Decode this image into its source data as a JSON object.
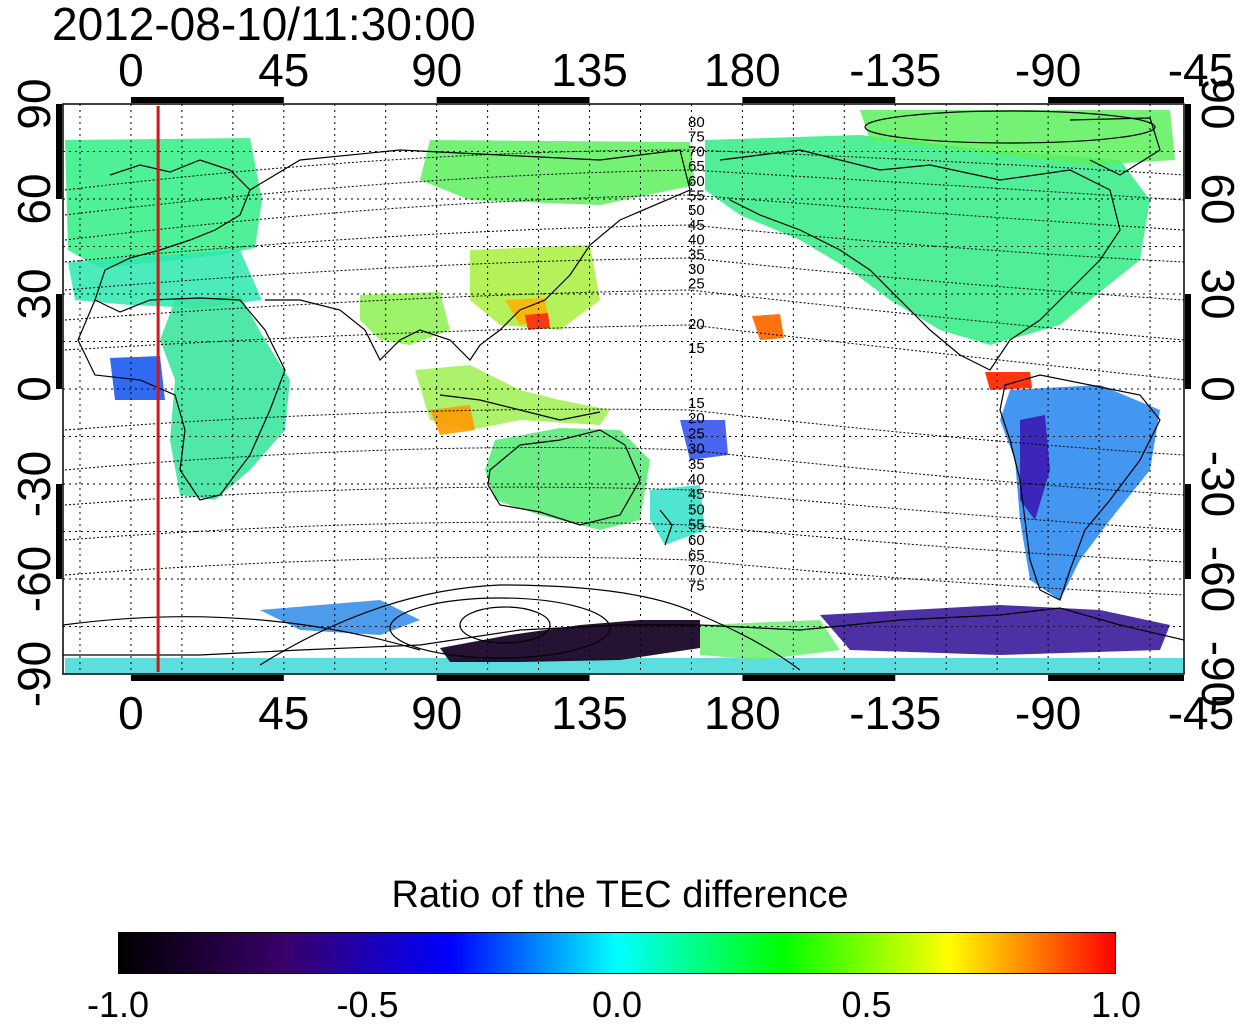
{
  "timestamp": "2012-08-10/11:30:00",
  "map": {
    "lon_top_labels": [
      "0",
      "45",
      "90",
      "135",
      "180",
      "-135",
      "-90",
      "-45"
    ],
    "lon_bottom_labels": [
      "0",
      "45",
      "90",
      "135",
      "180",
      "-135",
      "-90",
      "-45"
    ],
    "lat_left_labels": [
      "90",
      "60",
      "30",
      "0",
      "-30",
      "-60",
      "-90"
    ],
    "lat_right_labels": [
      "90",
      "60",
      "30",
      "0",
      "-30",
      "-60",
      "-90"
    ],
    "north_contour_labels": [
      "80",
      "75",
      "70",
      "65",
      "60",
      "55",
      "50",
      "45",
      "40",
      "35",
      "30",
      "25",
      "20",
      "15"
    ],
    "south_contour_labels": [
      "15",
      "20",
      "25",
      "30",
      "35",
      "40",
      "45",
      "50",
      "55",
      "60",
      "65",
      "70",
      "75"
    ],
    "marker_longitude": 8,
    "projection": "equirectangular",
    "lon_range": [
      -20,
      310
    ],
    "lat_range": [
      -90,
      90
    ]
  },
  "colorbar": {
    "title": "Ratio of the TEC difference",
    "ticks": [
      "-1.0",
      "-0.5",
      "0.0",
      "0.5",
      "1.0"
    ],
    "range": [
      -1.0,
      1.0
    ],
    "colormap": [
      "#000000",
      "#3a006a",
      "#0000ff",
      "#00ffff",
      "#00ff00",
      "#ffff00",
      "#ff0000"
    ]
  },
  "colors": {
    "marker_line": "#d81414",
    "grid": "#000000",
    "coastline": "#000000"
  }
}
